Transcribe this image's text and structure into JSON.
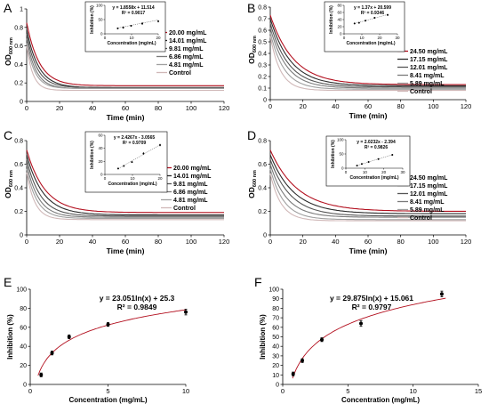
{
  "chart_data": [
    {
      "panel": "A",
      "type": "line",
      "xlabel": "Time (min)",
      "ylabel_main": "OD",
      "ylabel_sub": "600 nm",
      "xlim": [
        0,
        120
      ],
      "ylim": [
        0,
        1
      ],
      "xticks": [
        0,
        20,
        40,
        60,
        80,
        100,
        120
      ],
      "yticks": [
        0,
        0.2,
        0.4,
        0.6,
        0.8,
        1
      ],
      "series": [
        {
          "name": "20.00 mg/mL",
          "color": "#b3101f",
          "y0": 0.85,
          "yinf": 0.17,
          "k": 0.13
        },
        {
          "name": "14.01 mg/mL",
          "color": "#2a2a2a",
          "y0": 0.78,
          "yinf": 0.15,
          "k": 0.14
        },
        {
          "name": "9.81 mg/mL",
          "color": "#555555",
          "y0": 0.73,
          "yinf": 0.15,
          "k": 0.16
        },
        {
          "name": "6.86 mg/mL",
          "color": "#7a7a7a",
          "y0": 0.68,
          "yinf": 0.14,
          "k": 0.18
        },
        {
          "name": "4.81 mg/mL",
          "color": "#a0a0a0",
          "y0": 0.63,
          "yinf": 0.14,
          "k": 0.2
        },
        {
          "name": "Control",
          "color": "#d0b8b8",
          "y0": 0.6,
          "yinf": 0.12,
          "k": 0.26
        }
      ],
      "inset": {
        "equation": "y = 1.8558x + 11.514",
        "r2": "R² = 0.9017",
        "xlabel": "Concentration (mg/mL)",
        "ylabel": "Inhibition (%)",
        "xlim": [
          0,
          20
        ],
        "ylim": [
          0,
          100
        ],
        "xticks": [
          0,
          10,
          20
        ],
        "yticks": [
          0,
          50,
          100
        ],
        "points": [
          [
            4.81,
            19
          ],
          [
            6.86,
            22
          ],
          [
            9.81,
            28
          ],
          [
            14.01,
            36
          ],
          [
            20.0,
            44
          ]
        ],
        "errors": [
          3,
          4,
          3,
          5,
          4
        ],
        "fit": {
          "slope": 1.8558,
          "intercept": 11.514
        }
      }
    },
    {
      "panel": "B",
      "type": "line",
      "xlabel": "Time (min)",
      "ylabel_main": "OD",
      "ylabel_sub": "600 nm",
      "xlim": [
        0,
        120
      ],
      "ylim": [
        0,
        0.8
      ],
      "xticks": [
        0,
        20,
        40,
        60,
        80,
        100,
        120
      ],
      "yticks": [
        0,
        0.1,
        0.2,
        0.3,
        0.4,
        0.5,
        0.6,
        0.7,
        0.8
      ],
      "series": [
        {
          "name": "24.50 mg/mL",
          "color": "#b3101f",
          "y0": 0.73,
          "yinf": 0.13,
          "k": 0.07
        },
        {
          "name": "17.15 mg/mL",
          "color": "#2a2a2a",
          "y0": 0.7,
          "yinf": 0.12,
          "k": 0.08
        },
        {
          "name": "12.01 mg/mL",
          "color": "#555555",
          "y0": 0.66,
          "yinf": 0.11,
          "k": 0.09
        },
        {
          "name": "8.41 mg/mL",
          "color": "#7a7a7a",
          "y0": 0.62,
          "yinf": 0.1,
          "k": 0.1
        },
        {
          "name": "5.89 mg/mL",
          "color": "#a0a0a0",
          "y0": 0.58,
          "yinf": 0.09,
          "k": 0.12
        },
        {
          "name": "Control",
          "color": "#d0b8b8",
          "y0": 0.55,
          "yinf": 0.08,
          "k": 0.16
        }
      ],
      "inset": {
        "equation": "y = 1.37x + 20.599",
        "r2": "R² = 0.9346",
        "xlabel": "Concentration (mg/mL)",
        "ylabel": "Inhibition (%)",
        "xlim": [
          0,
          30
        ],
        "ylim": [
          0,
          80
        ],
        "xticks": [
          0,
          10,
          20,
          30
        ],
        "yticks": [
          0,
          20,
          40,
          60,
          80
        ],
        "points": [
          [
            5.89,
            29
          ],
          [
            8.41,
            31
          ],
          [
            12.01,
            37
          ],
          [
            17.15,
            45
          ],
          [
            24.5,
            53
          ]
        ],
        "errors": [
          2,
          2,
          2,
          2,
          3
        ],
        "fit": {
          "slope": 1.37,
          "intercept": 20.599
        }
      }
    },
    {
      "panel": "C",
      "type": "line",
      "xlabel": "Time (min)",
      "ylabel_main": "OD",
      "ylabel_sub": "600 nm",
      "xlim": [
        0,
        120
      ],
      "ylim": [
        0,
        0.8
      ],
      "xticks": [
        0,
        20,
        40,
        60,
        80,
        100,
        120
      ],
      "yticks": [
        0,
        0.2,
        0.4,
        0.6,
        0.8
      ],
      "series": [
        {
          "name": "20.00 mg/mL",
          "color": "#b3101f",
          "y0": 0.72,
          "yinf": 0.19,
          "k": 0.09
        },
        {
          "name": "14.01 mg/mL",
          "color": "#2a2a2a",
          "y0": 0.68,
          "yinf": 0.17,
          "k": 0.1
        },
        {
          "name": "9.81 mg/mL",
          "color": "#555555",
          "y0": 0.64,
          "yinf": 0.16,
          "k": 0.12
        },
        {
          "name": "6.86 mg/mL",
          "color": "#7a7a7a",
          "y0": 0.6,
          "yinf": 0.15,
          "k": 0.14
        },
        {
          "name": "4.81 mg/mL",
          "color": "#a0a0a0",
          "y0": 0.56,
          "yinf": 0.14,
          "k": 0.16
        },
        {
          "name": "Control",
          "color": "#d0b8b8",
          "y0": 0.53,
          "yinf": 0.13,
          "k": 0.2
        }
      ],
      "inset": {
        "equation": "y = 2.4267x - 3.0565",
        "r2": "R² = 0.9709",
        "xlabel": "Concentration (mg/mL)",
        "ylabel": "Inhibition (%)",
        "xlim": [
          0,
          20
        ],
        "ylim": [
          0,
          60
        ],
        "xticks": [
          0,
          10,
          20
        ],
        "yticks": [
          0,
          20,
          40,
          60
        ],
        "points": [
          [
            4.81,
            9
          ],
          [
            6.86,
            13
          ],
          [
            9.81,
            19
          ],
          [
            14.01,
            32
          ],
          [
            20.0,
            45
          ]
        ],
        "errors": [
          1,
          1,
          1,
          2,
          2
        ],
        "fit": {
          "slope": 2.4267,
          "intercept": -3.0565
        }
      }
    },
    {
      "panel": "D",
      "type": "line",
      "xlabel": "Time (min)",
      "ylabel_main": "OD",
      "ylabel_sub": "600 nm",
      "xlim": [
        0,
        120
      ],
      "ylim": [
        0,
        0.8
      ],
      "xticks": [
        0,
        20,
        40,
        60,
        80,
        100,
        120
      ],
      "yticks": [
        0,
        0.2,
        0.4,
        0.6,
        0.8
      ],
      "series": [
        {
          "name": "24.50 mg/mL",
          "color": "#b3101f",
          "y0": 0.72,
          "yinf": 0.2,
          "k": 0.06
        },
        {
          "name": "17.15 mg/mL",
          "color": "#2a2a2a",
          "y0": 0.68,
          "yinf": 0.18,
          "k": 0.07
        },
        {
          "name": "12.01 mg/mL",
          "color": "#555555",
          "y0": 0.64,
          "yinf": 0.16,
          "k": 0.08
        },
        {
          "name": "8.41 mg/mL",
          "color": "#7a7a7a",
          "y0": 0.6,
          "yinf": 0.15,
          "k": 0.1
        },
        {
          "name": "5.89 mg/mL",
          "color": "#a0a0a0",
          "y0": 0.56,
          "yinf": 0.13,
          "k": 0.12
        },
        {
          "name": "Control",
          "color": "#d0b8b8",
          "y0": 0.52,
          "yinf": 0.12,
          "k": 0.15
        }
      ],
      "inset": {
        "equation": "y = 2.0232x - 2.394",
        "r2": "R² = 0.9826",
        "xlabel": "Concentration (mg/mL)",
        "ylabel": "Inhibition (%)",
        "xlim": [
          0,
          30
        ],
        "ylim": [
          0,
          100
        ],
        "xticks": [
          0,
          10,
          20,
          30
        ],
        "yticks": [
          0,
          50,
          100
        ],
        "points": [
          [
            5.89,
            9
          ],
          [
            8.41,
            15
          ],
          [
            12.01,
            22
          ],
          [
            17.15,
            32
          ],
          [
            24.5,
            47
          ]
        ],
        "errors": [
          1,
          1,
          1,
          2,
          2
        ],
        "fit": {
          "slope": 2.0232,
          "intercept": -2.394
        }
      }
    },
    {
      "panel": "E",
      "type": "scatter",
      "xlabel": "Concentration (mg/mL)",
      "ylabel": "Inhibition (%)",
      "xlim": [
        0,
        10
      ],
      "ylim": [
        0,
        100
      ],
      "xticks": [
        0,
        5,
        10
      ],
      "yticks": [
        0,
        20,
        40,
        60,
        80,
        100
      ],
      "equation": "y = 23.051ln(x) + 25.3",
      "r2": "R² = 0.9849",
      "points": [
        [
          0.7,
          10
        ],
        [
          1.4,
          33
        ],
        [
          2.5,
          50
        ],
        [
          5.0,
          63
        ],
        [
          10.0,
          76
        ]
      ],
      "errors": [
        2,
        2,
        2,
        2,
        3
      ],
      "fit": {
        "type": "log",
        "a": 23.051,
        "b": 25.3,
        "x_from": 0.5,
        "x_to": 10
      }
    },
    {
      "panel": "F",
      "type": "scatter",
      "xlabel": "Concentration (mg/mL)",
      "ylabel": "Inhibition (%)",
      "xlim": [
        0,
        15
      ],
      "ylim": [
        0,
        100
      ],
      "xticks": [
        0,
        5,
        10,
        15
      ],
      "yticks": [
        0,
        10,
        20,
        30,
        40,
        50,
        60,
        70,
        80,
        90,
        100
      ],
      "equation": "y = 29.875ln(x) + 15.061",
      "r2": "R² = 0.9797",
      "points": [
        [
          0.8,
          11
        ],
        [
          1.5,
          25
        ],
        [
          3.0,
          47
        ],
        [
          6.0,
          64
        ],
        [
          12.2,
          95
        ]
      ],
      "errors": [
        2,
        2,
        2,
        3,
        3
      ],
      "fit": {
        "type": "log",
        "a": 29.875,
        "b": 15.061,
        "x_from": 0.75,
        "x_to": 12.5
      }
    }
  ]
}
